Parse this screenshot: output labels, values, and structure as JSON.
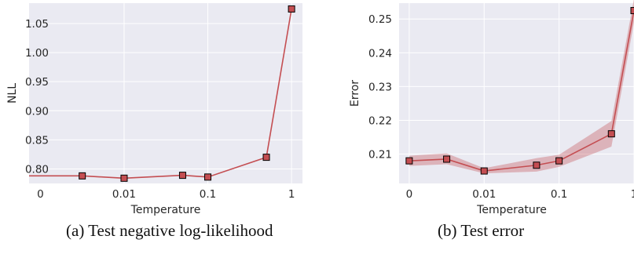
{
  "colors": {
    "plot_background": "#EAEAF2",
    "grid": "#FFFFFF",
    "line": "#C44E52",
    "marker_face": "#C44E52",
    "marker_edge": "#000000",
    "band": "#C44E52"
  },
  "chart_data": [
    {
      "type": "line",
      "title": "",
      "caption": "(a) Test negative log-likelihood",
      "xlabel": "Temperature",
      "ylabel": "NLL",
      "x_scale": "symlog",
      "x_ticks": [
        0,
        0.01,
        0.1,
        1
      ],
      "x_tick_labels": [
        "0",
        "0.01",
        "0.1",
        "1"
      ],
      "xlim": [
        -0.00135,
        1.35
      ],
      "ylim": [
        0.775,
        1.085
      ],
      "y_ticks": [
        0.8,
        0.85,
        0.9,
        0.95,
        1.0,
        1.05
      ],
      "y_tick_labels": [
        "0.80",
        "0.85",
        "0.90",
        "0.95",
        "1.00",
        "1.05"
      ],
      "grid": true,
      "series": [
        {
          "x": [
            -0.00135,
            0.005,
            0.01,
            0.05,
            0.1,
            0.5,
            1
          ],
          "y": [
            0.788,
            0.788,
            0.784,
            0.789,
            0.786,
            0.82,
            1.075
          ],
          "markers": [
            false,
            true,
            true,
            true,
            true,
            true,
            true
          ]
        }
      ]
    },
    {
      "type": "line",
      "title": "",
      "caption": "(b) Test error",
      "xlabel": "Temperature",
      "ylabel": "Error",
      "x_scale": "symlog",
      "x_ticks": [
        0,
        0.01,
        0.1,
        1
      ],
      "x_tick_labels": [
        "0",
        "0.01",
        "0.1",
        "1"
      ],
      "xlim": [
        -0.00135,
        1.0
      ],
      "ylim": [
        0.2013,
        0.2547
      ],
      "y_ticks": [
        0.21,
        0.22,
        0.23,
        0.24,
        0.25
      ],
      "y_tick_labels": [
        "0.21",
        "0.22",
        "0.23",
        "0.24",
        "0.25"
      ],
      "grid": true,
      "series": [
        {
          "x": [
            0,
            0.005,
            0.01,
            0.05,
            0.1,
            0.5,
            1
          ],
          "y": [
            0.208,
            0.2085,
            0.205,
            0.2067,
            0.208,
            0.216,
            0.2525
          ],
          "y_lower": [
            0.2065,
            0.207,
            0.2043,
            0.2048,
            0.2062,
            0.2122,
            0.249
          ],
          "y_upper": [
            0.2095,
            0.2102,
            0.2058,
            0.2088,
            0.2098,
            0.2198,
            0.256
          ]
        }
      ]
    }
  ]
}
